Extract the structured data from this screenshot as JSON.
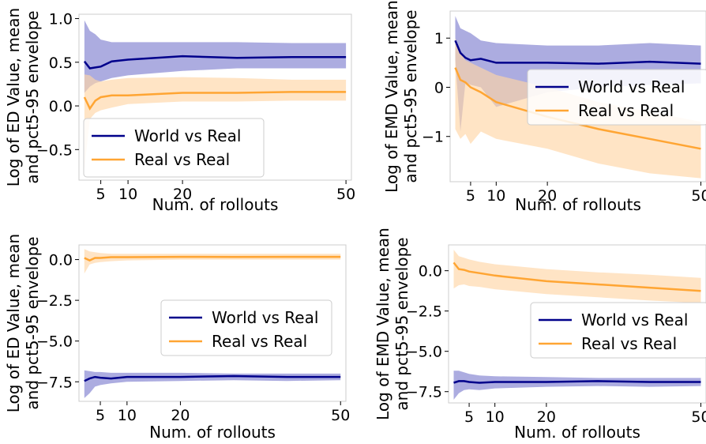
{
  "colors": {
    "world": "#00008b",
    "real": "#ffa533",
    "world_band": "#8080d0",
    "real_band": "#ffd6a6"
  },
  "chart_data": [
    {
      "type": "line",
      "xlabel": "Num. of rollouts",
      "ylabel_lines": [
        "Log of ED Value, mean",
        "and pct5-95 envelope"
      ],
      "xlim": [
        1,
        51
      ],
      "ylim": [
        -0.85,
        1.05
      ],
      "xticks": [
        5,
        10,
        20,
        50
      ],
      "yticks": [
        1.0,
        0.5,
        0.0,
        -0.5
      ],
      "ytick_labels": [
        "1.0",
        "0.5",
        "0.0",
        "−0.5"
      ],
      "legend_position": "lower-left",
      "series": [
        {
          "name": "World vs Real",
          "color_key": "world",
          "x": [
            2,
            3,
            4,
            5,
            7,
            10,
            20,
            30,
            40,
            50
          ],
          "mean": [
            0.51,
            0.43,
            0.44,
            0.45,
            0.51,
            0.53,
            0.57,
            0.55,
            0.56,
            0.56
          ],
          "lo": [
            0.15,
            0.22,
            0.26,
            0.28,
            0.32,
            0.35,
            0.4,
            0.43,
            0.43,
            0.43
          ],
          "hi": [
            0.98,
            0.86,
            0.82,
            0.76,
            0.73,
            0.73,
            0.73,
            0.73,
            0.72,
            0.72
          ]
        },
        {
          "name": "Real vs Real",
          "color_key": "real",
          "x": [
            2,
            3,
            4,
            5,
            7,
            10,
            20,
            30,
            40,
            50
          ],
          "mean": [
            0.1,
            -0.03,
            0.06,
            0.1,
            0.12,
            0.12,
            0.15,
            0.15,
            0.16,
            0.16
          ],
          "lo": [
            -0.72,
            -0.15,
            -0.08,
            -0.05,
            -0.02,
            0.02,
            0.05,
            0.05,
            0.06,
            0.06
          ],
          "hi": [
            0.36,
            0.35,
            0.3,
            0.28,
            0.3,
            0.32,
            0.33,
            0.32,
            0.3,
            0.3
          ]
        }
      ]
    },
    {
      "type": "line",
      "xlabel": "Num. of rollouts",
      "ylabel_lines": [
        "Log of EMD Value, mean",
        "and pct5-95 envelope"
      ],
      "xlim": [
        1,
        51
      ],
      "ylim": [
        -1.92,
        1.55
      ],
      "xticks": [
        5,
        10,
        20,
        50
      ],
      "yticks": [
        1,
        0,
        -1
      ],
      "ytick_labels": [
        "1",
        "0",
        "−1"
      ],
      "legend_position": "right",
      "series": [
        {
          "name": "World vs Real",
          "color_key": "world",
          "x": [
            2,
            3,
            4,
            5,
            7,
            10,
            20,
            30,
            40,
            50
          ],
          "mean": [
            0.95,
            0.7,
            0.6,
            0.55,
            0.58,
            0.5,
            0.5,
            0.48,
            0.52,
            0.48
          ],
          "lo": [
            0.55,
            -0.9,
            0.1,
            0.05,
            0.0,
            -0.4,
            -0.1,
            0.0,
            0.05,
            0.08
          ],
          "hi": [
            1.45,
            1.2,
            1.15,
            1.1,
            0.95,
            0.9,
            0.85,
            0.85,
            0.9,
            0.85
          ]
        },
        {
          "name": "Real vs Real",
          "color_key": "real",
          "x": [
            2,
            3,
            4,
            5,
            7,
            10,
            20,
            30,
            40,
            50
          ],
          "mean": [
            0.4,
            0.15,
            0.1,
            0.0,
            -0.1,
            -0.3,
            -0.6,
            -0.85,
            -1.05,
            -1.25
          ],
          "lo": [
            -0.85,
            -1.05,
            -0.95,
            -1.15,
            -0.9,
            -1.05,
            -1.25,
            -1.55,
            -1.75,
            -1.85
          ],
          "hi": [
            1.0,
            0.7,
            0.55,
            0.5,
            0.4,
            0.25,
            0.0,
            -0.3,
            -0.5,
            -0.7
          ]
        }
      ]
    },
    {
      "type": "line",
      "xlabel": "Num. of rollouts",
      "ylabel_lines": [
        "Log of ED Value, mean",
        "and pct5-95 envelope"
      ],
      "xlim": [
        1,
        51
      ],
      "ylim": [
        -8.7,
        0.9
      ],
      "xticks": [
        5,
        10,
        20,
        50
      ],
      "yticks": [
        0.0,
        -2.5,
        -5.0,
        -7.5
      ],
      "ytick_labels": [
        "0.0",
        "−2.5",
        "−5.0",
        "−7.5"
      ],
      "legend_position": "center-right",
      "series": [
        {
          "name": "World vs Real",
          "color_key": "world",
          "x": [
            2,
            3,
            4,
            5,
            7,
            10,
            20,
            30,
            40,
            50
          ],
          "mean": [
            -7.45,
            -7.3,
            -7.2,
            -7.25,
            -7.3,
            -7.2,
            -7.2,
            -7.15,
            -7.2,
            -7.2
          ],
          "lo": [
            -8.5,
            -8.2,
            -7.8,
            -7.7,
            -7.6,
            -7.5,
            -7.45,
            -7.4,
            -7.45,
            -7.4
          ],
          "hi": [
            -6.8,
            -6.85,
            -6.9,
            -6.9,
            -6.95,
            -6.95,
            -6.95,
            -7.0,
            -7.0,
            -7.0
          ]
        },
        {
          "name": "Real vs Real",
          "color_key": "real",
          "x": [
            2,
            3,
            4,
            5,
            7,
            10,
            20,
            30,
            40,
            50
          ],
          "mean": [
            0.1,
            -0.05,
            0.1,
            0.1,
            0.15,
            0.15,
            0.17,
            0.16,
            0.17,
            0.17
          ],
          "lo": [
            -0.85,
            -0.3,
            -0.2,
            -0.15,
            -0.1,
            -0.05,
            0.0,
            0.0,
            0.0,
            0.0
          ],
          "hi": [
            0.65,
            0.5,
            0.45,
            0.4,
            0.35,
            0.35,
            0.35,
            0.35,
            0.35,
            0.35
          ]
        }
      ]
    },
    {
      "type": "line",
      "xlabel": "Num. of rollouts",
      "ylabel_lines": [
        "Log of EMD Value, mean",
        "and pct5-95 envelope"
      ],
      "xlim": [
        1,
        51
      ],
      "ylim": [
        -8.2,
        1.6
      ],
      "xticks": [
        5,
        10,
        20,
        50
      ],
      "yticks": [
        0.0,
        -2.5,
        -5.0,
        -7.5
      ],
      "ytick_labels": [
        "0.0",
        "−2.5",
        "−5.0",
        "−7.5"
      ],
      "legend_position": "center-right",
      "series": [
        {
          "name": "World vs Real",
          "color_key": "world",
          "x": [
            2,
            3,
            4,
            5,
            7,
            10,
            20,
            30,
            40,
            50
          ],
          "mean": [
            -6.95,
            -6.85,
            -6.85,
            -6.9,
            -6.95,
            -6.9,
            -6.9,
            -6.85,
            -6.9,
            -6.9
          ],
          "lo": [
            -8.0,
            -7.6,
            -7.4,
            -7.35,
            -7.4,
            -7.3,
            -7.2,
            -7.15,
            -7.2,
            -7.15
          ],
          "hi": [
            -6.2,
            -6.2,
            -6.3,
            -6.4,
            -6.5,
            -6.55,
            -6.6,
            -6.65,
            -6.65,
            -6.65
          ]
        },
        {
          "name": "Real vs Real",
          "color_key": "real",
          "x": [
            2,
            3,
            4,
            5,
            7,
            10,
            20,
            30,
            40,
            50
          ],
          "mean": [
            0.5,
            0.1,
            0.05,
            -0.05,
            -0.15,
            -0.3,
            -0.65,
            -0.85,
            -1.05,
            -1.25
          ],
          "lo": [
            -1.1,
            -0.9,
            -0.85,
            -0.95,
            -1.0,
            -1.15,
            -1.45,
            -1.65,
            -1.85,
            -2.0
          ],
          "hi": [
            1.3,
            0.9,
            0.8,
            0.7,
            0.55,
            0.4,
            0.1,
            -0.1,
            -0.25,
            -0.45
          ]
        }
      ]
    }
  ]
}
